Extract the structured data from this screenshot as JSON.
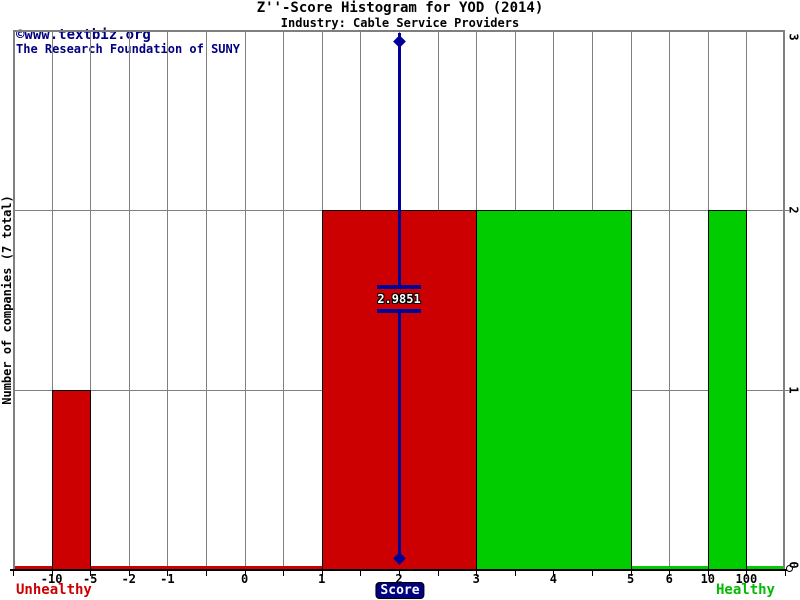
{
  "page": {
    "title": "Z''-Score Histogram for YOD (2014)",
    "subtitle": "Industry: Cable Service Providers",
    "watermark_line1": "©www.textbiz.org",
    "watermark_line2": "The Research Foundation of SUNY"
  },
  "chart_data": {
    "type": "bar",
    "title": "Z''-Score Histogram for YOD (2014)",
    "subtitle": "Industry: Cable Service Providers",
    "xlabel": "Score",
    "ylabel": "Number of companies (7 total)",
    "total_companies": 7,
    "ylim": [
      0,
      3
    ],
    "yticks": [
      0,
      1,
      2,
      3
    ],
    "num_slots": 20,
    "x_ticks": [
      {
        "slot": 1,
        "label": "-10"
      },
      {
        "slot": 2,
        "label": "-5"
      },
      {
        "slot": 3,
        "label": "-2"
      },
      {
        "slot": 4,
        "label": "-1"
      },
      {
        "slot": 6,
        "label": "0"
      },
      {
        "slot": 8,
        "label": "1"
      },
      {
        "slot": 10,
        "label": "2"
      },
      {
        "slot": 12,
        "label": "3"
      },
      {
        "slot": 14,
        "label": "4"
      },
      {
        "slot": 16,
        "label": "5"
      },
      {
        "slot": 17,
        "label": "6"
      },
      {
        "slot": 18,
        "label": "10"
      },
      {
        "slot": 19,
        "label": "100"
      }
    ],
    "bins": [
      {
        "range": "-10 to -5",
        "from_slot": 1,
        "to_slot": 2,
        "count": 1,
        "color": "unhealthy"
      },
      {
        "range": "1 to 3",
        "from_slot": 8,
        "to_slot": 12,
        "count": 2,
        "color": "unhealthy"
      },
      {
        "range": "3 to 5",
        "from_slot": 12,
        "to_slot": 16,
        "count": 2,
        "color": "healthy"
      },
      {
        "range": "10 to 100",
        "from_slot": 18,
        "to_slot": 19,
        "count": 2,
        "color": "healthy"
      }
    ],
    "baseline_zones": [
      {
        "from_slot": 0,
        "to_slot": 8,
        "color": "unhealthy"
      },
      {
        "from_slot": 16,
        "to_slot": 20,
        "color": "healthy"
      }
    ],
    "marker": {
      "label": "2.9851",
      "slot": 10
    },
    "zone_labels": {
      "left": "Unhealthy",
      "right": "Healthy"
    },
    "colors": {
      "unhealthy": "#cc0000",
      "healthy": "#00cc00",
      "marker": "#000099",
      "grid": "#808080",
      "navy": "#000080",
      "axis": "#000000"
    },
    "legend": "off",
    "grid": "on"
  }
}
